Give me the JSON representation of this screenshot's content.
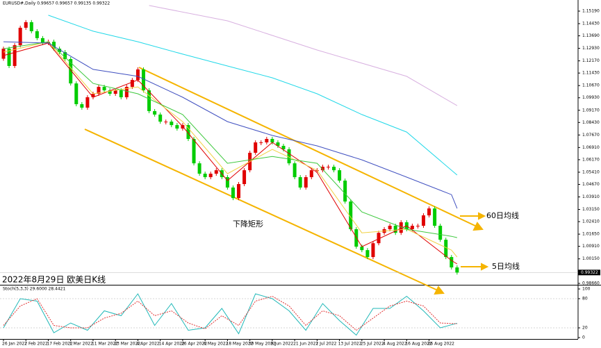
{
  "chart_data": {
    "type": "candlestick",
    "header": "EURUSD#,Daily  0.99657 0.99657 0.99135 0.99322",
    "title": "2022年8月29日 欧美日K线",
    "annotations": [
      "下降矩形",
      "60日均线",
      "5日均线"
    ],
    "up_color": "#e00000",
    "down_color": "#00cc00",
    "open": 1.123,
    "closes": [
      1.1291,
      1.1186,
      1.1312,
      1.1418,
      1.1452,
      1.1397,
      1.1355,
      1.1325,
      1.1333,
      1.1291,
      1.127,
      1.1228,
      1.108,
      1.0954,
      1.0933,
      1.0996,
      1.1017,
      1.1059,
      1.1038,
      1.1017,
      1.1038,
      1.0996,
      1.1059,
      1.1101,
      1.1165,
      1.1038,
      1.0912,
      1.0891,
      1.0848,
      1.0848,
      1.0827,
      1.0806,
      1.0827,
      1.0743,
      1.0595,
      1.0532,
      1.0511,
      1.0532,
      1.0553,
      1.0511,
      1.0448,
      1.0384,
      1.0469,
      1.0553,
      1.0659,
      1.0722,
      1.0722,
      1.0743,
      1.0722,
      1.0701,
      1.068,
      1.0595,
      1.0511,
      1.0448,
      1.0511,
      1.0553,
      1.0553,
      1.0574,
      1.0574,
      1.0553,
      1.049,
      1.0363,
      1.0195,
      1.0089,
      1.0068,
      1.0026,
      1.011,
      1.0173,
      1.0195,
      1.0216,
      1.0173,
      1.0237,
      1.0195,
      1.0216,
      1.0216,
      1.0279,
      1.0321,
      1.0216,
      1.0131,
      1.0026,
      0.9963,
      0.9932
    ],
    "ylim": [
      0.9866,
      1.1519
    ],
    "yticks": [
      {
        "value": 1.1519,
        "label": "1.15190"
      },
      {
        "value": 1.1443,
        "label": "1.14430"
      },
      {
        "value": 1.1369,
        "label": "1.13690"
      },
      {
        "value": 1.1293,
        "label": "1.12930"
      },
      {
        "value": 1.1217,
        "label": "1.12170"
      },
      {
        "value": 1.1143,
        "label": "1.11430"
      },
      {
        "value": 1.1067,
        "label": "1.10670"
      },
      {
        "value": 1.0993,
        "label": "1.09930"
      },
      {
        "value": 1.0917,
        "label": "1.09170"
      },
      {
        "value": 1.0843,
        "label": "1.08430"
      },
      {
        "value": 1.0767,
        "label": "1.07670"
      },
      {
        "value": 1.0691,
        "label": "1.06910"
      },
      {
        "value": 1.0617,
        "label": "1.06170"
      },
      {
        "value": 1.0541,
        "label": "1.05410"
      },
      {
        "value": 1.0467,
        "label": "1.04670"
      },
      {
        "value": 1.0391,
        "label": "1.03910"
      },
      {
        "value": 1.0315,
        "label": "1.03150"
      },
      {
        "value": 1.0241,
        "label": "1.02410"
      },
      {
        "value": 1.0165,
        "label": "1.01650"
      },
      {
        "value": 1.0091,
        "label": "1.00910"
      },
      {
        "value": 1.0015,
        "label": "1.00150"
      },
      {
        "value": 0.9866,
        "label": "0.98660"
      }
    ],
    "last_price": {
      "value": 0.99322,
      "label": "0.99322"
    },
    "xticks": [
      "26 Jan 2022",
      "7 Feb 2022",
      "17 Feb 2022",
      "1 Mar 2022",
      "11 Mar 2022",
      "23 Mar 2022",
      "4 Apr 2022",
      "14 Apr 2022",
      "26 Apr 2022",
      "6 May 2022",
      "18 May 2022",
      "30 May 2022",
      "9 Jun 2022",
      "21 Jun 2022",
      "1 Jul 2022",
      "13 Jul 2022",
      "25 Jul 2022",
      "4 Aug 2022",
      "16 Aug 2022",
      "26 Aug 2022"
    ],
    "series": [
      {
        "color": "#e00000",
        "x": [
          0,
          8,
          16,
          24,
          32,
          40,
          48,
          56,
          64,
          72,
          80,
          81
        ],
        "values": [
          1.1249,
          1.1325,
          1.0996,
          1.1101,
          1.0819,
          1.049,
          1.0722,
          1.054,
          1.0089,
          1.0216,
          1.0005,
          0.9984
        ]
      },
      {
        "color": "#f0d040",
        "x": [
          0,
          8,
          16,
          24,
          32,
          40,
          48,
          56,
          64,
          72,
          80,
          81
        ],
        "values": [
          1.127,
          1.1333,
          1.1017,
          1.1059,
          1.0848,
          1.0532,
          1.068,
          1.0553,
          1.0173,
          1.0195,
          1.0068,
          1.0026
        ]
      },
      {
        "color": "#3cc83c",
        "x": [
          0,
          8,
          16,
          24,
          32,
          40,
          48,
          56,
          64,
          72,
          80,
          81
        ],
        "values": [
          1.1291,
          1.1333,
          1.108,
          1.1017,
          1.0891,
          1.0595,
          1.0637,
          1.0595,
          1.03,
          1.0195,
          1.0152,
          1.0144
        ]
      },
      {
        "color": "#4050c0",
        "x": [
          0,
          8,
          16,
          24,
          32,
          40,
          48,
          56,
          64,
          72,
          80,
          81
        ],
        "values": [
          1.1333,
          1.1325,
          1.1165,
          1.1123,
          1.0996,
          1.0848,
          1.0764,
          1.0701,
          1.0616,
          1.0511,
          1.0405,
          1.0321
        ]
      },
      {
        "color": "#20d8e8",
        "x": [
          8,
          16,
          24,
          32,
          40,
          48,
          56,
          64,
          72,
          81
        ],
        "values": [
          1.1494,
          1.1397,
          1.1333,
          1.1258,
          1.1186,
          1.1114,
          1.1017,
          1.0891,
          1.0785,
          1.0524
        ]
      },
      {
        "color": "#d8b0e0",
        "x": [
          26,
          40,
          56,
          72,
          81
        ],
        "values": [
          1.1553,
          1.146,
          1.1283,
          1.1123,
          1.0945
        ]
      }
    ],
    "stoch": {
      "label": "Stoch(5,3,3) 29.6000 28.4421",
      "ylim": [
        0,
        100
      ],
      "yticks": [
        100,
        80,
        20,
        0
      ],
      "series": [
        {
          "color": "#20b8b8",
          "x": [
            0,
            3,
            6,
            9,
            12,
            15,
            18,
            21,
            24,
            27,
            30,
            33,
            36,
            39,
            42,
            45,
            48,
            51,
            54,
            57,
            60,
            63,
            66,
            69,
            72,
            75,
            78,
            81
          ],
          "values": [
            20,
            80,
            75,
            10,
            30,
            15,
            55,
            45,
            90,
            25,
            70,
            15,
            20,
            60,
            8,
            90,
            80,
            55,
            15,
            70,
            35,
            5,
            60,
            60,
            85,
            55,
            20,
            29.6
          ]
        },
        {
          "color": "#e03030",
          "x": [
            0,
            3,
            6,
            9,
            12,
            15,
            18,
            21,
            24,
            27,
            30,
            33,
            36,
            39,
            42,
            45,
            48,
            51,
            54,
            57,
            60,
            63,
            66,
            69,
            72,
            75,
            78,
            81
          ],
          "values": [
            25,
            65,
            80,
            25,
            20,
            20,
            40,
            50,
            75,
            45,
            55,
            30,
            18,
            45,
            25,
            75,
            85,
            65,
            25,
            55,
            45,
            15,
            40,
            65,
            75,
            65,
            30,
            28.4421
          ]
        }
      ]
    }
  }
}
